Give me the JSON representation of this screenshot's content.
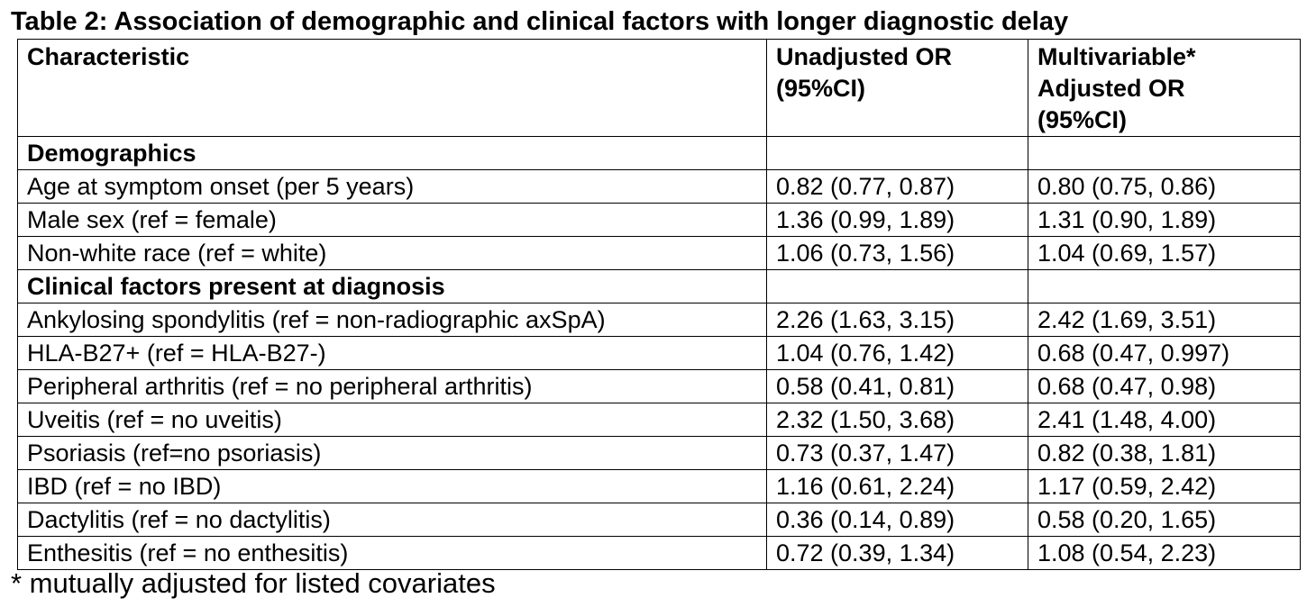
{
  "title": "Table 2: Association of demographic and clinical factors with longer diagnostic delay",
  "columns": {
    "characteristic": "Characteristic",
    "unadjusted": [
      "Unadjusted OR",
      "(95%CI)"
    ],
    "adjusted": [
      "Multivariable*",
      "Adjusted OR",
      "(95%CI)"
    ]
  },
  "sections": {
    "demographics": {
      "label": "Demographics",
      "rows": [
        {
          "characteristic": "Age at symptom onset (per 5 years)",
          "unadjusted": "0.82 (0.77, 0.87)",
          "adjusted": "0.80 (0.75, 0.86)"
        },
        {
          "characteristic": "Male sex (ref = female)",
          "unadjusted": "1.36 (0.99, 1.89)",
          "adjusted": "1.31 (0.90, 1.89)"
        },
        {
          "characteristic": "Non-white race (ref = white)",
          "unadjusted": "1.06 (0.73, 1.56)",
          "adjusted": "1.04 (0.69, 1.57)"
        }
      ]
    },
    "clinical": {
      "label": "Clinical factors present at diagnosis",
      "rows": [
        {
          "characteristic": "Ankylosing spondylitis (ref = non-radiographic axSpA)",
          "unadjusted": "2.26 (1.63, 3.15)",
          "adjusted": "2.42 (1.69, 3.51)"
        },
        {
          "characteristic": "HLA-B27+ (ref = HLA-B27-)",
          "unadjusted": "1.04 (0.76, 1.42)",
          "adjusted": "0.68 (0.47, 0.997)"
        },
        {
          "characteristic": "Peripheral arthritis (ref = no peripheral arthritis)",
          "unadjusted": "0.58 (0.41, 0.81)",
          "adjusted": "0.68 (0.47, 0.98)"
        },
        {
          "characteristic": "Uveitis (ref = no uveitis)",
          "unadjusted": "2.32 (1.50, 3.68)",
          "adjusted": "2.41 (1.48, 4.00)"
        },
        {
          "characteristic": "Psoriasis (ref=no psoriasis)",
          "unadjusted": "0.73 (0.37, 1.47)",
          "adjusted": "0.82 (0.38, 1.81)"
        },
        {
          "characteristic": "IBD (ref = no IBD)",
          "unadjusted": "1.16 (0.61, 2.24)",
          "adjusted": "1.17 (0.59, 2.42)"
        },
        {
          "characteristic": "Dactylitis (ref = no dactylitis)",
          "unadjusted": "0.36 (0.14, 0.89)",
          "adjusted": "0.58 (0.20, 1.65)"
        },
        {
          "characteristic": "Enthesitis (ref = no enthesitis)",
          "unadjusted": "0.72 (0.39, 1.34)",
          "adjusted": "1.08 (0.54, 2.23)"
        }
      ]
    }
  },
  "footnote": "* mutually adjusted for listed covariates"
}
